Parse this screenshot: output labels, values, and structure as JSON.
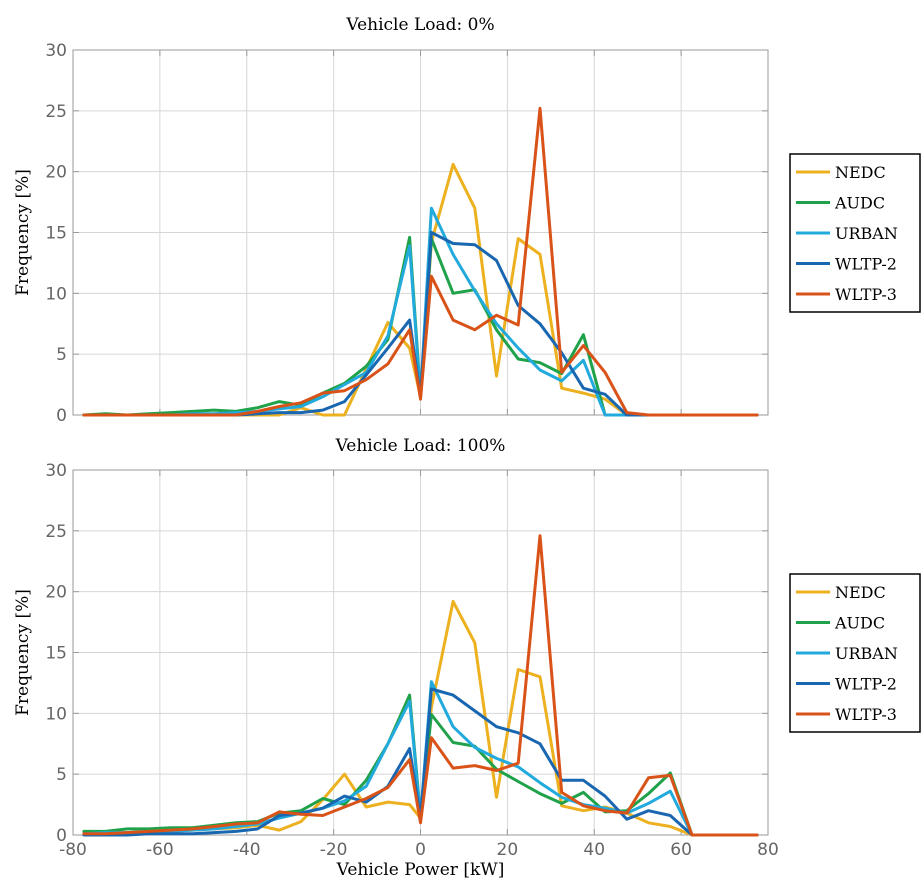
{
  "chart_data": [
    {
      "type": "line",
      "title": "Vehicle Load: 0%",
      "xlabel": "",
      "ylabel": "Frequency [%]",
      "xlim": [
        -80,
        80
      ],
      "ylim": [
        0,
        30
      ],
      "xticks": [],
      "yticks": [
        "0",
        "5",
        "10",
        "15",
        "20",
        "25",
        "30"
      ],
      "grid": true,
      "legend": "right",
      "x": [
        -77.5,
        -72.5,
        -67.5,
        -62.5,
        -57.5,
        -52.5,
        -47.5,
        -42.5,
        -37.5,
        -32.5,
        -27.5,
        -22.5,
        -17.5,
        -12.5,
        -7.5,
        -2.5,
        0,
        2.5,
        7.5,
        12.5,
        17.5,
        22.5,
        27.5,
        32.5,
        37.5,
        42.5,
        47.5,
        52.5,
        57.5,
        62.5,
        67.5,
        72.5,
        77.5
      ],
      "series": [
        {
          "name": "NEDC",
          "color": "#EDB120",
          "values": [
            0,
            0,
            0,
            0,
            0,
            0,
            0,
            0,
            0,
            0,
            0.6,
            0,
            0,
            3.8,
            7.6,
            5.5,
            1.5,
            14.2,
            20.6,
            17.0,
            3.2,
            14.5,
            13.2,
            2.2,
            1.8,
            1.3,
            0,
            0,
            0,
            0,
            0,
            0,
            0
          ]
        },
        {
          "name": "AUDC",
          "color": "#1FA24A",
          "values": [
            0,
            0.1,
            0,
            0.1,
            0.2,
            0.3,
            0.4,
            0.3,
            0.6,
            1.1,
            0.8,
            1.8,
            2.6,
            4.0,
            6.2,
            14.6,
            1.6,
            14.5,
            10.0,
            10.3,
            7.0,
            4.6,
            4.3,
            3.4,
            6.6,
            0,
            0,
            0,
            0,
            0,
            0,
            0,
            0
          ]
        },
        {
          "name": "URBAN",
          "color": "#22AADD",
          "values": [
            0,
            0,
            0,
            0,
            0,
            0.1,
            0.1,
            0.2,
            0.3,
            0.5,
            0.7,
            1.5,
            2.5,
            3.5,
            6.5,
            13.9,
            1.5,
            17.0,
            13.2,
            10.2,
            7.5,
            5.5,
            3.7,
            2.8,
            4.5,
            0,
            0,
            0,
            0,
            0,
            0,
            0,
            0
          ]
        },
        {
          "name": "WLTP-2",
          "color": "#1A67B1",
          "values": [
            0,
            0,
            0,
            0,
            0,
            0,
            0,
            0,
            0.1,
            0.2,
            0.2,
            0.4,
            1.1,
            3.3,
            5.5,
            7.8,
            1.5,
            15.0,
            14.1,
            14.0,
            12.7,
            9.0,
            7.5,
            5.1,
            2.2,
            1.7,
            0,
            0,
            0,
            0,
            0,
            0,
            0
          ]
        },
        {
          "name": "WLTP-3",
          "color": "#D95319",
          "values": [
            0,
            0,
            0,
            0,
            0,
            0,
            0,
            0,
            0.3,
            0.7,
            1.0,
            1.8,
            2.0,
            2.9,
            4.2,
            7.0,
            1.3,
            11.4,
            7.8,
            7.0,
            8.2,
            7.4,
            25.2,
            3.5,
            5.7,
            3.5,
            0.2,
            0,
            0,
            0,
            0,
            0,
            0
          ]
        }
      ]
    },
    {
      "type": "line",
      "title": "Vehicle Load: 100%",
      "xlabel": "Vehicle Power [kW]",
      "ylabel": "Frequency [%]",
      "xlim": [
        -80,
        80
      ],
      "ylim": [
        0,
        30
      ],
      "xticks": [
        "-80",
        "-60",
        "-40",
        "-20",
        "0",
        "20",
        "40",
        "60",
        "80"
      ],
      "yticks": [
        "0",
        "5",
        "10",
        "15",
        "20",
        "25",
        "30"
      ],
      "grid": true,
      "legend": "right",
      "x": [
        -77.5,
        -72.5,
        -67.5,
        -62.5,
        -57.5,
        -52.5,
        -47.5,
        -42.5,
        -37.5,
        -32.5,
        -27.5,
        -22.5,
        -17.5,
        -12.5,
        -7.5,
        -2.5,
        0,
        2.5,
        7.5,
        12.5,
        17.5,
        22.5,
        27.5,
        32.5,
        37.5,
        42.5,
        47.5,
        52.5,
        57.5,
        62.5,
        67.5,
        72.5,
        77.5
      ],
      "series": [
        {
          "name": "NEDC",
          "color": "#EDB120",
          "values": [
            0.1,
            0.1,
            0.2,
            0.2,
            0.3,
            0.4,
            0.5,
            0.6,
            0.8,
            0.4,
            1.1,
            2.9,
            5.0,
            2.3,
            2.7,
            2.5,
            1.4,
            10.5,
            19.2,
            15.8,
            3.1,
            13.6,
            13.0,
            2.4,
            2.0,
            2.3,
            1.8,
            1.0,
            0.7,
            0,
            0,
            0,
            0
          ]
        },
        {
          "name": "AUDC",
          "color": "#1FA24A",
          "values": [
            0.3,
            0.3,
            0.5,
            0.5,
            0.6,
            0.6,
            0.8,
            1.0,
            1.1,
            1.8,
            2.0,
            3.0,
            2.5,
            4.5,
            7.5,
            11.5,
            1.5,
            9.9,
            7.6,
            7.3,
            5.4,
            4.4,
            3.4,
            2.6,
            3.5,
            1.9,
            2.0,
            3.4,
            5.1,
            0,
            0,
            0,
            0
          ]
        },
        {
          "name": "URBAN",
          "color": "#22AADD",
          "values": [
            0.1,
            0.2,
            0.2,
            0.3,
            0.3,
            0.4,
            0.5,
            0.7,
            0.9,
            1.4,
            1.8,
            2.2,
            2.8,
            4.0,
            7.5,
            11.0,
            1.5,
            12.6,
            8.9,
            7.2,
            6.3,
            5.6,
            4.3,
            3.1,
            2.5,
            2.2,
            1.8,
            2.6,
            3.6,
            0,
            0,
            0,
            0
          ]
        },
        {
          "name": "WLTP-2",
          "color": "#1A67B1",
          "values": [
            0,
            0,
            0,
            0.1,
            0.1,
            0.1,
            0.2,
            0.3,
            0.5,
            1.6,
            1.8,
            2.2,
            3.2,
            2.7,
            4.0,
            7.1,
            1.4,
            12.0,
            11.5,
            10.2,
            8.9,
            8.4,
            7.5,
            4.5,
            4.5,
            3.2,
            1.3,
            2.0,
            1.6,
            0,
            0,
            0,
            0
          ]
        },
        {
          "name": "WLTP-3",
          "color": "#D95319",
          "values": [
            0.1,
            0.1,
            0.2,
            0.3,
            0.4,
            0.5,
            0.7,
            0.9,
            1.0,
            1.9,
            1.7,
            1.6,
            2.3,
            3.0,
            3.9,
            6.2,
            1.0,
            8.0,
            5.5,
            5.7,
            5.3,
            5.9,
            24.6,
            3.5,
            2.4,
            2.0,
            1.8,
            4.7,
            4.9,
            0,
            0,
            0,
            0
          ]
        }
      ]
    }
  ]
}
